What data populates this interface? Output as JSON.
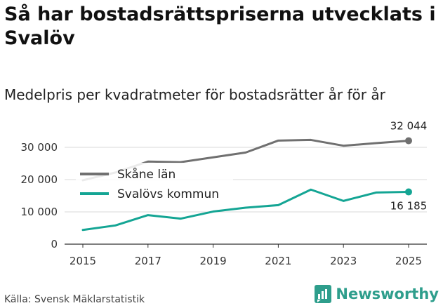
{
  "title": "Så har bostadsrättspriserna utvecklats i Svalöv",
  "subtitle": "Medelpris per kvadratmeter för bostadsrätter år för år",
  "source": "Källa: Svensk Mäklarstatistik",
  "brand": "Newsworthy",
  "colors": {
    "skane": "#707070",
    "svalov": "#14a594",
    "grid": "#d9d9d9",
    "axis": "#333333",
    "brand": "#2e9e8c"
  },
  "chart_data": {
    "type": "line",
    "x": [
      2015,
      2016,
      2017,
      2018,
      2019,
      2020,
      2021,
      2022,
      2023,
      2024,
      2025
    ],
    "series": [
      {
        "name": "Skåne län",
        "key": "skane",
        "values": [
          19800,
          22200,
          25600,
          25400,
          26900,
          28400,
          32100,
          32300,
          30500,
          31300,
          32044
        ],
        "end_label": "32 044"
      },
      {
        "name": "Svalövs kommun",
        "key": "svalov",
        "values": [
          4400,
          5800,
          9000,
          7900,
          10100,
          11300,
          12100,
          16900,
          13400,
          16000,
          16185
        ],
        "end_label": "16 185"
      }
    ],
    "xticks": [
      2015,
      2017,
      2019,
      2021,
      2023,
      2025
    ],
    "yticks": [
      0,
      10000,
      20000,
      30000
    ],
    "ytick_labels": [
      "0",
      "10 000",
      "20 000",
      "30 000"
    ],
    "ylim": [
      0,
      36000
    ],
    "xlabel": "",
    "ylabel": "",
    "legend_position": "top-left inside plot"
  }
}
